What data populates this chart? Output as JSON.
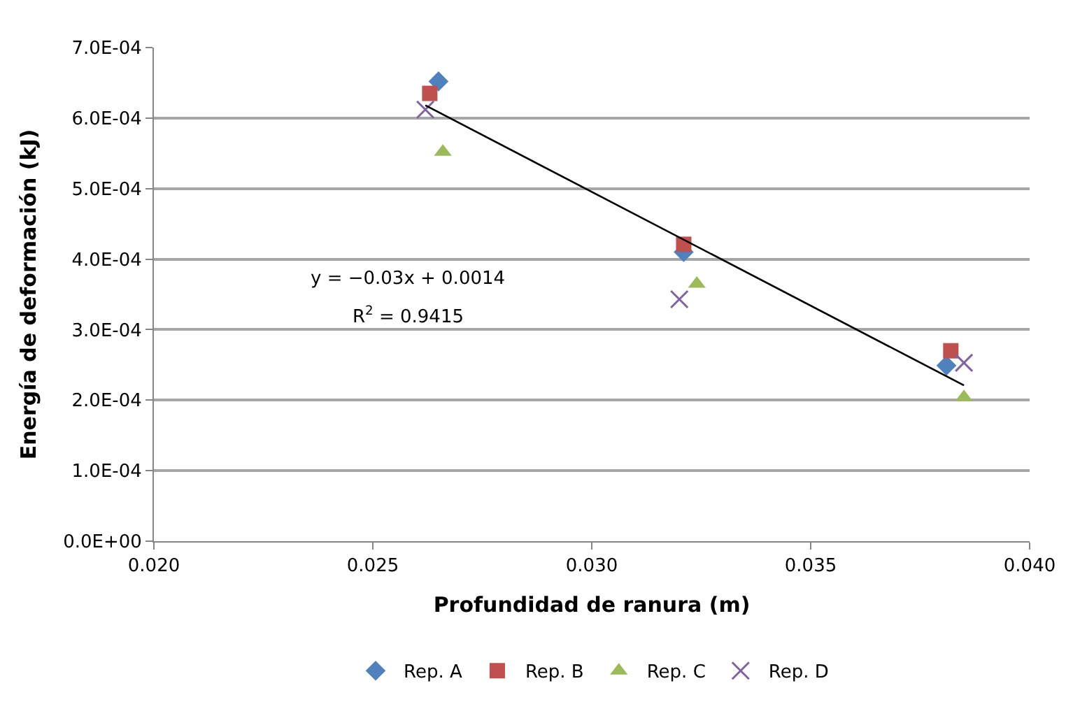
{
  "chart_data": {
    "type": "scatter",
    "xlabel": "Profundidad de ranura (m)",
    "ylabel": "Energía de deformación (kJ)",
    "series": [
      {
        "name": "Rep. A",
        "color": "#4f81bd",
        "marker": "diamond",
        "x": [
          0.0265,
          0.0321,
          0.0381
        ],
        "values": [
          0.000652,
          0.00041,
          0.000249
        ]
      },
      {
        "name": "Rep. B",
        "color": "#c0504d",
        "marker": "square",
        "x": [
          0.0263,
          0.0321,
          0.0382
        ],
        "values": [
          0.000635,
          0.000421,
          0.00027
        ]
      },
      {
        "name": "Rep. C",
        "color": "#9bbb59",
        "marker": "triangle",
        "x": [
          0.0266,
          0.0324,
          0.0385
        ],
        "values": [
          0.000552,
          0.000365,
          0.000204
        ]
      },
      {
        "name": "Rep. D",
        "color": "#8064a2",
        "marker": "cross",
        "x": [
          0.0262,
          0.032,
          0.0385
        ],
        "values": [
          0.000612,
          0.000343,
          0.000253
        ]
      },
      {
        "type": "line",
        "color": "#000000",
        "marker": "none",
        "x": [
          0.0262,
          0.0385
        ],
        "values": [
          0.000618,
          0.000221
        ]
      }
    ],
    "annotations": [
      "y = −0.03x + 0.0014",
      "R$^{2}$ = 0.9415"
    ],
    "xlim": [
      0.02,
      0.04
    ],
    "xticks": [
      {
        "value": 0.02,
        "label": "0.020"
      },
      0.025,
      {
        "value": 0.03,
        "label": "0.030"
      },
      0.035,
      {
        "value": 0.04,
        "label": "0.040"
      }
    ],
    "ylim": [
      0,
      0.0007
    ],
    "yticks": [
      {
        "value": 0,
        "label": "0.0E+00"
      },
      {
        "value": 0.0001,
        "label": "1.0E-04"
      },
      {
        "value": 0.0002,
        "label": "2.0E-04"
      },
      {
        "value": 0.0003,
        "label": "3.0E-04"
      },
      {
        "value": 0.0004,
        "label": "4.0E-04"
      },
      {
        "value": 0.0005,
        "label": "5.0E-04"
      },
      {
        "value": 0.0006,
        "label": "6.0E-04"
      },
      {
        "value": 0.0007,
        "label": "7.0E-04"
      }
    ],
    "grid": "y",
    "legend": "bottom"
  }
}
